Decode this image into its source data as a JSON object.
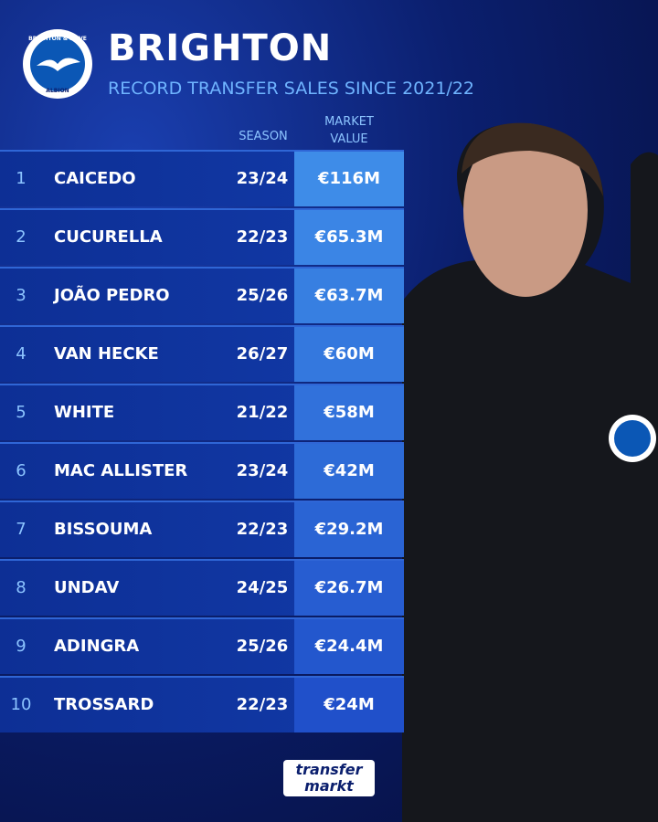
{
  "header": {
    "title": "BRIGHTON",
    "subtitle": "RECORD TRANSFER SALES SINCE 2021/22",
    "logo_top": "BRIGHTON & HOVE",
    "logo_bottom": "ALBION"
  },
  "table": {
    "columns": [
      "SEASON",
      "MARKET VALUE"
    ],
    "rows": [
      [
        "1",
        "CAICEDO",
        "23/24",
        "€116M"
      ],
      [
        "2",
        "CUCURELLA",
        "22/23",
        "€65.3M"
      ],
      [
        "3",
        "JOÃO PEDRO",
        "25/26",
        "€63.7M"
      ],
      [
        "4",
        "VAN HECKE",
        "26/27",
        "€60M"
      ],
      [
        "5",
        "WHITE",
        "21/22",
        "€58M"
      ],
      [
        "6",
        "MAC ALLISTER",
        "23/24",
        "€42M"
      ],
      [
        "7",
        "BISSOUMA",
        "22/23",
        "€29.2M"
      ],
      [
        "8",
        "UNDAV",
        "24/25",
        "€26.7M"
      ],
      [
        "9",
        "ADINGRA",
        "25/26",
        "€24.4M"
      ],
      [
        "10",
        "TROSSARD",
        "22/23",
        "€24M"
      ]
    ]
  },
  "footer": {
    "brand_top": "transfer",
    "brand_bottom": "markt"
  }
}
